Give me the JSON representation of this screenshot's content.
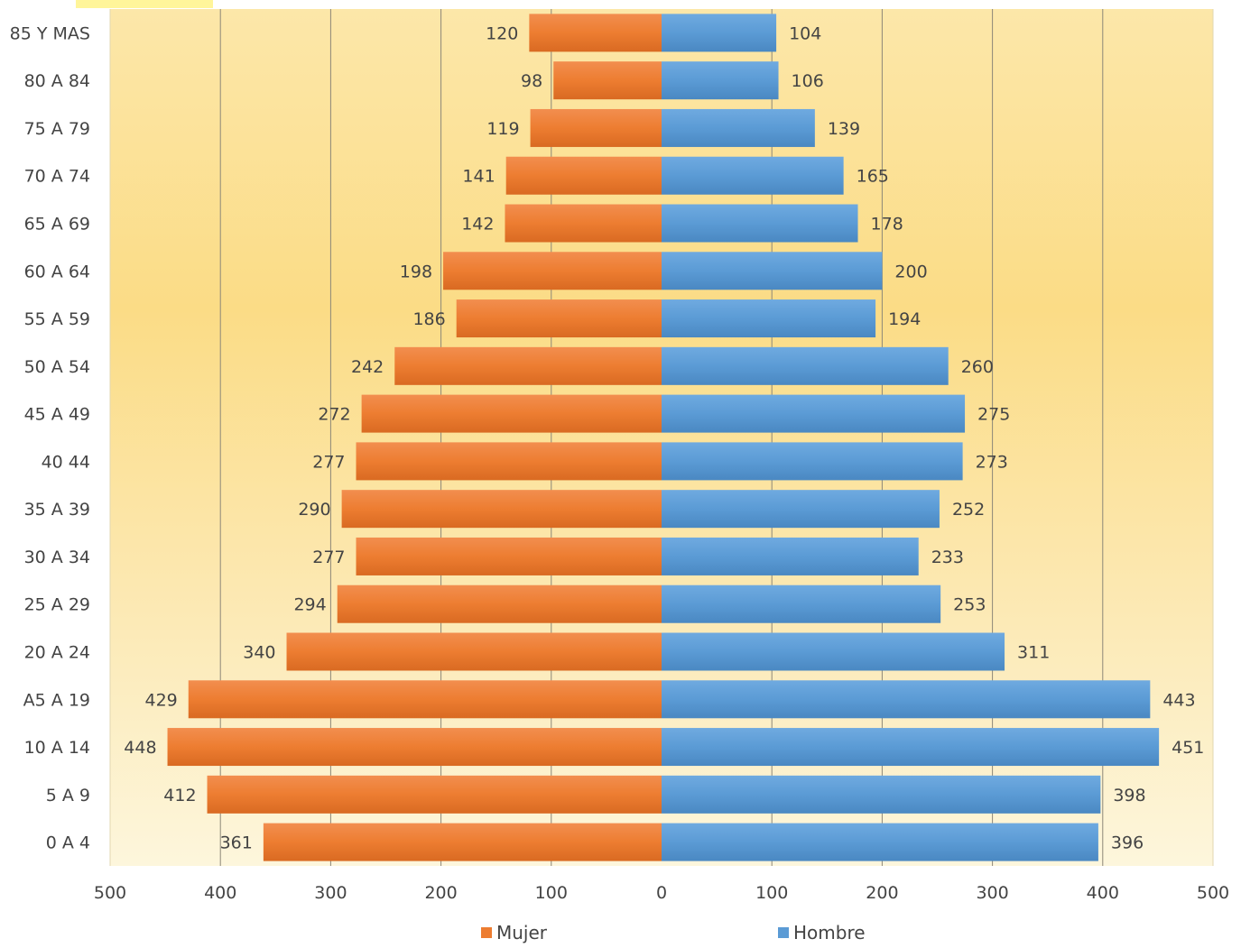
{
  "chart_data": {
    "type": "bar",
    "orientation": "horizontal",
    "layout": "population-pyramid",
    "categories": [
      "85 Y MAS",
      "80 A 84",
      "75 A 79",
      "70 A 74",
      "65 A 69",
      "60 A 64",
      "55 A 59",
      "50 A 54",
      "45 A 49",
      "40 44",
      "35 A 39",
      "30 A 34",
      "25 A 29",
      "20 A 24",
      "A5 A 19",
      "10 A 14",
      "5 A 9",
      "0 A 4"
    ],
    "series": [
      {
        "name": "Mujer",
        "side": "left",
        "color": "#ED7D31",
        "values": [
          120,
          98,
          119,
          141,
          142,
          198,
          186,
          242,
          272,
          277,
          290,
          277,
          294,
          340,
          429,
          448,
          412,
          361
        ]
      },
      {
        "name": "Hombre",
        "side": "right",
        "color": "#5B9BD5",
        "values": [
          104,
          106,
          139,
          165,
          178,
          200,
          194,
          260,
          275,
          273,
          252,
          233,
          253,
          311,
          443,
          451,
          398,
          396
        ]
      }
    ],
    "xlim": [
      -500,
      500
    ],
    "xticks": [
      "500",
      "400",
      "300",
      "200",
      "100",
      "0",
      "100",
      "200",
      "300",
      "400",
      "500"
    ],
    "grid": "vertical",
    "legend_position": "bottom",
    "background": "yellow-gradient"
  }
}
